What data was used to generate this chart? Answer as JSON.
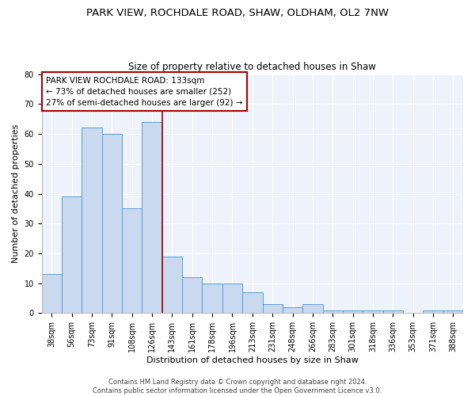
{
  "title": "PARK VIEW, ROCHDALE ROAD, SHAW, OLDHAM, OL2 7NW",
  "subtitle": "Size of property relative to detached houses in Shaw",
  "xlabel": "Distribution of detached houses by size in Shaw",
  "ylabel": "Number of detached properties",
  "categories": [
    "38sqm",
    "56sqm",
    "73sqm",
    "91sqm",
    "108sqm",
    "126sqm",
    "143sqm",
    "161sqm",
    "178sqm",
    "196sqm",
    "213sqm",
    "231sqm",
    "248sqm",
    "266sqm",
    "283sqm",
    "301sqm",
    "318sqm",
    "336sqm",
    "353sqm",
    "371sqm",
    "388sqm"
  ],
  "values": [
    13,
    39,
    62,
    60,
    35,
    64,
    19,
    12,
    10,
    10,
    7,
    3,
    2,
    3,
    1,
    1,
    1,
    1,
    0,
    1,
    1
  ],
  "bar_color": "#c8d9f0",
  "bar_edge_color": "#5a9fd4",
  "background_color": "#eef2fb",
  "ylim": [
    0,
    80
  ],
  "yticks": [
    0,
    10,
    20,
    30,
    40,
    50,
    60,
    70,
    80
  ],
  "property_label": "PARK VIEW ROCHDALE ROAD: 133sqm",
  "pct_smaller": "73% of detached houses are smaller (252)",
  "pct_larger": "27% of semi-detached houses are larger (92)",
  "vline_color": "#aa0000",
  "annotation_box_color": "#aa0000",
  "title_fontsize": 9.5,
  "subtitle_fontsize": 8.5,
  "axis_label_fontsize": 8,
  "tick_fontsize": 7,
  "annotation_fontsize": 7.5,
  "footer_text": "Contains HM Land Registry data © Crown copyright and database right 2024.\nContains public sector information licensed under the Open Government Licence v3.0.",
  "footer_fontsize": 6
}
